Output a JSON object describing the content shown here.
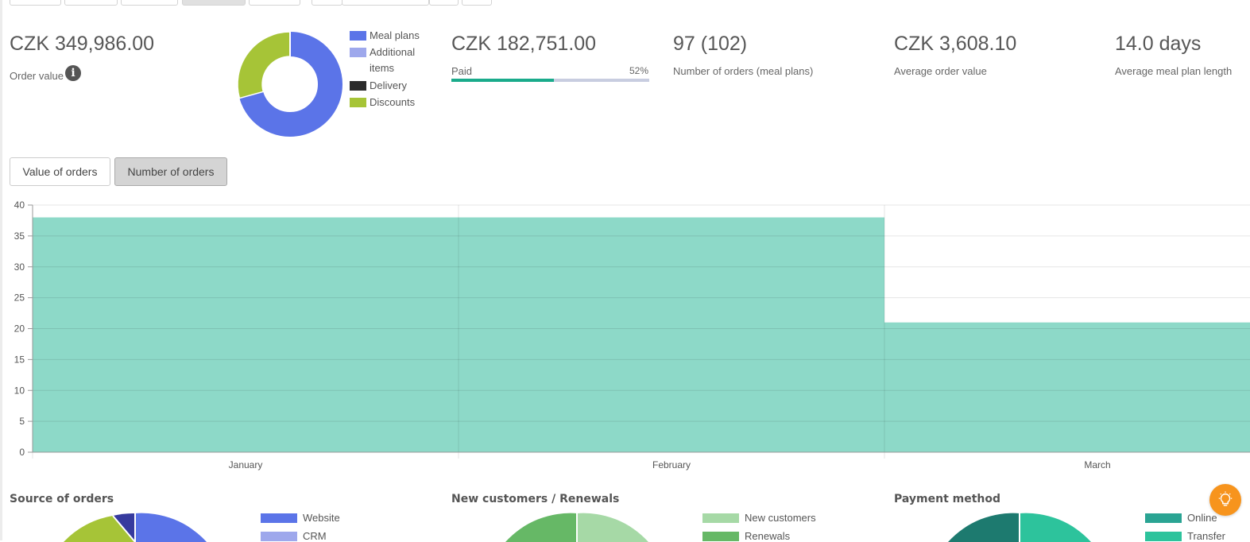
{
  "kpis": {
    "order_value": {
      "value": "CZK 349,986.00",
      "label": "Order value"
    },
    "paid": {
      "value": "CZK 182,751.00",
      "label": "Paid",
      "percent_text": "52%",
      "fraction": 0.52
    },
    "orders": {
      "value": "97 (102)",
      "label": "Number of orders (meal plans)"
    },
    "avg_order": {
      "value": "CZK 3,608.10",
      "label": "Average order value"
    },
    "avg_length": {
      "value": "14.0 days",
      "label": "Average meal plan length"
    }
  },
  "order_breakdown": {
    "legend": [
      {
        "label": "Meal plans",
        "color": "#5b74e8"
      },
      {
        "label": "Additional items",
        "color": "#9ea8ec"
      },
      {
        "label": "Delivery",
        "color": "#2b2b2b"
      },
      {
        "label": "Discounts",
        "color": "#a6c437"
      }
    ],
    "shares": [
      0.7,
      0.0,
      0.0,
      0.3
    ]
  },
  "tabs": [
    {
      "label": "Value of orders",
      "selected": false
    },
    {
      "label": "Number of orders",
      "selected": true
    }
  ],
  "chart_data": {
    "type": "bar",
    "categories": [
      "January",
      "February",
      "March"
    ],
    "values": [
      38,
      38,
      21
    ],
    "ylim": [
      0,
      40
    ],
    "yticks": [
      "0",
      "5",
      "10",
      "15",
      "20",
      "25",
      "30",
      "35",
      "40"
    ],
    "color": "#8dd9c8",
    "grid": true
  },
  "bottom_sections": [
    {
      "title": "Source of orders",
      "legend": [
        {
          "label": "Website",
          "color": "#5b74e8"
        },
        {
          "label": "CRM",
          "color": "#9ea8ec"
        }
      ]
    },
    {
      "title": "New customers / Renewals",
      "legend": [
        {
          "label": "New customers",
          "color": "#a6d9a6"
        },
        {
          "label": "Renewals",
          "color": "#66b866"
        }
      ]
    },
    {
      "title": "Payment method",
      "legend": [
        {
          "label": "Online",
          "color": "#2aa493"
        },
        {
          "label": "Transfer",
          "color": "#2dc39c"
        }
      ]
    }
  ],
  "fab": {
    "icon": "lightbulb-icon",
    "color": "#f7941d"
  }
}
